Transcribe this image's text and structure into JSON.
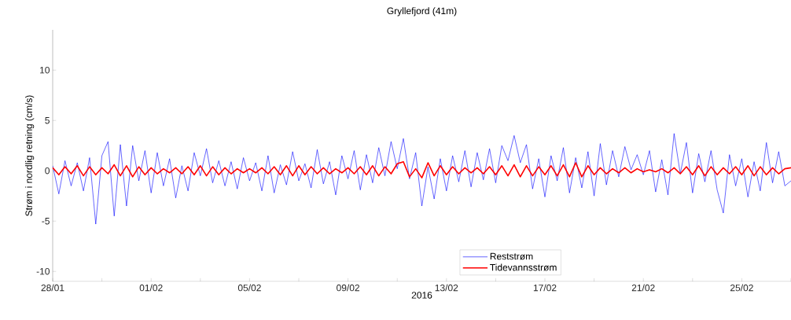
{
  "chart_data": {
    "type": "line",
    "title": "Gryllefjord (41m)",
    "xlabel": "2016",
    "ylabel": "Strøm i nordlig retning (cm/s)",
    "x": [
      "2016-01-28T00:00",
      "2016-01-28T06:00",
      "2016-01-28T12:00",
      "2016-01-28T18:00",
      "2016-01-29T00:00",
      "2016-01-29T06:00",
      "2016-01-29T12:00",
      "2016-01-29T18:00",
      "2016-01-30T00:00",
      "2016-01-30T06:00",
      "2016-01-30T12:00",
      "2016-01-30T18:00",
      "2016-01-31T00:00",
      "2016-01-31T06:00",
      "2016-01-31T12:00",
      "2016-01-31T18:00",
      "2016-02-01T00:00",
      "2016-02-01T06:00",
      "2016-02-01T12:00",
      "2016-02-01T18:00",
      "2016-02-02T00:00",
      "2016-02-02T06:00",
      "2016-02-02T12:00",
      "2016-02-02T18:00",
      "2016-02-03T00:00",
      "2016-02-03T06:00",
      "2016-02-03T12:00",
      "2016-02-03T18:00",
      "2016-02-04T00:00",
      "2016-02-04T06:00",
      "2016-02-04T12:00",
      "2016-02-04T18:00",
      "2016-02-05T00:00",
      "2016-02-05T06:00",
      "2016-02-05T12:00",
      "2016-02-05T18:00",
      "2016-02-06T00:00",
      "2016-02-06T06:00",
      "2016-02-06T12:00",
      "2016-02-06T18:00",
      "2016-02-07T00:00",
      "2016-02-07T06:00",
      "2016-02-07T12:00",
      "2016-02-07T18:00",
      "2016-02-08T00:00",
      "2016-02-08T06:00",
      "2016-02-08T12:00",
      "2016-02-08T18:00",
      "2016-02-09T00:00",
      "2016-02-09T06:00",
      "2016-02-09T12:00",
      "2016-02-09T18:00",
      "2016-02-10T00:00",
      "2016-02-10T06:00",
      "2016-02-10T12:00",
      "2016-02-10T18:00",
      "2016-02-11T00:00",
      "2016-02-11T06:00",
      "2016-02-11T12:00",
      "2016-02-11T18:00",
      "2016-02-12T00:00",
      "2016-02-12T06:00",
      "2016-02-12T12:00",
      "2016-02-12T18:00",
      "2016-02-13T00:00",
      "2016-02-13T06:00",
      "2016-02-13T12:00",
      "2016-02-13T18:00",
      "2016-02-14T00:00",
      "2016-02-14T06:00",
      "2016-02-14T12:00",
      "2016-02-14T18:00",
      "2016-02-15T00:00",
      "2016-02-15T06:00",
      "2016-02-15T12:00",
      "2016-02-15T18:00",
      "2016-02-16T00:00",
      "2016-02-16T06:00",
      "2016-02-16T12:00",
      "2016-02-16T18:00",
      "2016-02-17T00:00",
      "2016-02-17T06:00",
      "2016-02-17T12:00",
      "2016-02-17T18:00",
      "2016-02-18T00:00",
      "2016-02-18T06:00",
      "2016-02-18T12:00",
      "2016-02-18T18:00",
      "2016-02-19T00:00",
      "2016-02-19T06:00",
      "2016-02-19T12:00",
      "2016-02-19T18:00",
      "2016-02-20T00:00",
      "2016-02-20T06:00",
      "2016-02-20T12:00",
      "2016-02-20T18:00",
      "2016-02-21T00:00",
      "2016-02-21T06:00",
      "2016-02-21T12:00",
      "2016-02-21T18:00",
      "2016-02-22T00:00",
      "2016-02-22T06:00",
      "2016-02-22T12:00",
      "2016-02-22T18:00",
      "2016-02-23T00:00",
      "2016-02-23T06:00",
      "2016-02-23T12:00",
      "2016-02-23T18:00",
      "2016-02-24T00:00",
      "2016-02-24T06:00",
      "2016-02-24T12:00",
      "2016-02-24T18:00",
      "2016-02-25T00:00",
      "2016-02-25T06:00",
      "2016-02-25T12:00",
      "2016-02-25T18:00",
      "2016-02-26T00:00",
      "2016-02-26T06:00",
      "2016-02-26T12:00",
      "2016-02-26T18:00",
      "2016-02-27T00:00"
    ],
    "series": [
      {
        "name": "Reststrøm",
        "color": "#0000ff",
        "values": [
          0.5,
          -2.3,
          1.0,
          -1.5,
          0.8,
          -2.0,
          1.3,
          -5.3,
          1.5,
          2.9,
          -4.5,
          2.6,
          -3.5,
          2.5,
          -1.0,
          2.0,
          -2.2,
          1.8,
          -1.5,
          1.2,
          -2.7,
          0.5,
          -2.0,
          1.8,
          -0.5,
          2.2,
          -1.2,
          1.0,
          -1.5,
          0.9,
          -1.8,
          1.3,
          -1.0,
          0.8,
          -2.0,
          1.5,
          -2.2,
          0.6,
          -1.4,
          1.9,
          -1.0,
          0.7,
          -1.7,
          2.1,
          -1.3,
          0.9,
          -2.4,
          1.5,
          -0.8,
          2.0,
          -1.9,
          1.6,
          -1.2,
          2.3,
          -0.5,
          2.9,
          0.2,
          3.2,
          -0.8,
          1.8,
          -3.5,
          0.4,
          -2.8,
          1.2,
          -2.0,
          1.5,
          -1.1,
          2.0,
          -1.6,
          1.8,
          -0.9,
          2.2,
          -1.2,
          2.5,
          1.0,
          3.5,
          0.8,
          2.6,
          -1.8,
          1.2,
          -2.6,
          1.5,
          -1.0,
          2.3,
          -2.2,
          1.3,
          -1.7,
          1.9,
          -2.5,
          2.7,
          -1.4,
          2.0,
          -0.6,
          2.4,
          0.1,
          1.6,
          -0.4,
          2.0,
          -2.1,
          1.1,
          -2.4,
          3.7,
          -0.3,
          2.8,
          -2.2,
          1.7,
          -1.1,
          2.0,
          -1.9,
          -4.2,
          1.6,
          -1.5,
          1.2,
          -2.6,
          0.9,
          -2.0,
          2.8,
          -1.2,
          1.9,
          -1.5,
          -1.0
        ]
      },
      {
        "name": "Tidevannsstrøm",
        "color": "#ff0000",
        "values": [
          0.3,
          -0.4,
          0.4,
          -0.3,
          0.5,
          -0.5,
          0.4,
          -0.4,
          0.3,
          -0.3,
          0.6,
          -0.5,
          0.5,
          -0.6,
          0.4,
          -0.4,
          0.3,
          -0.3,
          0.2,
          -0.2,
          0.3,
          -0.3,
          0.4,
          -0.4,
          0.5,
          -0.5,
          0.4,
          -0.4,
          0.3,
          -0.3,
          0.2,
          -0.2,
          0.2,
          -0.2,
          0.3,
          -0.3,
          0.4,
          -0.4,
          0.5,
          -0.5,
          0.5,
          -0.4,
          0.4,
          -0.3,
          0.3,
          -0.3,
          0.2,
          -0.2,
          0.3,
          -0.3,
          0.4,
          -0.4,
          0.5,
          -0.5,
          0.4,
          -0.3,
          0.7,
          0.9,
          -0.6,
          0.2,
          -0.7,
          0.8,
          -0.5,
          0.5,
          -0.4,
          0.4,
          -0.3,
          0.3,
          -0.2,
          0.3,
          -0.3,
          0.4,
          -0.4,
          0.5,
          -0.5,
          0.6,
          -0.6,
          0.5,
          -0.5,
          0.4,
          -0.4,
          0.5,
          -0.5,
          0.6,
          -0.6,
          0.8,
          -0.6,
          0.5,
          -0.4,
          0.3,
          -0.3,
          0.2,
          -0.2,
          0.3,
          -0.2,
          0.2,
          -0.1,
          0.1,
          -0.1,
          0.2,
          -0.2,
          0.3,
          -0.3,
          0.4,
          -0.4,
          0.5,
          -0.5,
          0.4,
          -0.4,
          0.3,
          -0.3,
          0.4,
          -0.4,
          0.5,
          -0.5,
          0.4,
          -0.4,
          0.3,
          -0.3,
          0.2,
          0.3
        ]
      }
    ],
    "xlim": [
      "2016-01-28",
      "2016-02-27"
    ],
    "xticks": [
      {
        "value": "2016-01-28",
        "label": "28/01"
      },
      {
        "value": "2016-01-30",
        "label": null
      },
      {
        "value": "2016-02-01",
        "label": "01/02"
      },
      {
        "value": "2016-02-03",
        "label": null
      },
      {
        "value": "2016-02-05",
        "label": "05/02"
      },
      {
        "value": "2016-02-07",
        "label": null
      },
      {
        "value": "2016-02-09",
        "label": "09/02"
      },
      {
        "value": "2016-02-11",
        "label": null
      },
      {
        "value": "2016-02-13",
        "label": "13/02"
      },
      {
        "value": "2016-02-15",
        "label": null
      },
      {
        "value": "2016-02-17",
        "label": "17/02"
      },
      {
        "value": "2016-02-19",
        "label": null
      },
      {
        "value": "2016-02-21",
        "label": "21/02"
      },
      {
        "value": "2016-02-23",
        "label": null
      },
      {
        "value": "2016-02-25",
        "label": "25/02"
      },
      {
        "value": "2016-02-27",
        "label": null
      }
    ],
    "ylim": [
      -11,
      14
    ],
    "yticks": [
      -10,
      -5,
      0,
      5,
      10
    ],
    "legend": "bottom",
    "grid": false
  }
}
